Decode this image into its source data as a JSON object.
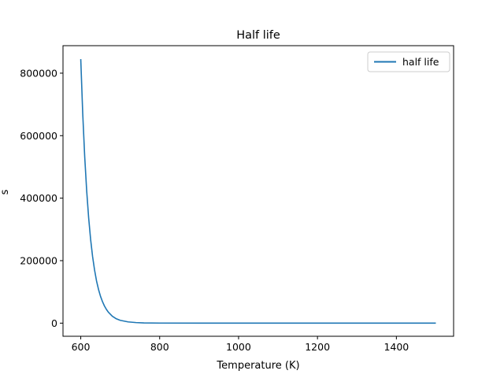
{
  "chart_data": {
    "type": "line",
    "title": "Half life",
    "xlabel": "Temperature (K)",
    "ylabel": "s",
    "xlim": [
      555,
      1545
    ],
    "ylim": [
      -42000,
      888000
    ],
    "xticks": [
      600,
      800,
      1000,
      1200,
      1400
    ],
    "yticks": [
      0,
      200000,
      400000,
      600000,
      800000
    ],
    "grid": false,
    "legend_position": "top-right",
    "series": [
      {
        "name": "half life",
        "color": "#1f77b4",
        "x": [
          600,
          605,
          610,
          615,
          620,
          625,
          630,
          635,
          640,
          645,
          650,
          655,
          660,
          665,
          670,
          680,
          690,
          700,
          720,
          740,
          760,
          800,
          900,
          1000,
          1100,
          1200,
          1300,
          1400,
          1500
        ],
        "y": [
          845000,
          671000,
          533000,
          424000,
          337000,
          268000,
          213000,
          170000,
          135000,
          108000,
          86000,
          69000,
          55000,
          44000,
          35000,
          22000,
          14000,
          9000,
          4000,
          1800,
          800,
          200,
          20,
          5,
          2,
          1,
          0.5,
          0.3,
          0.2
        ]
      }
    ]
  }
}
